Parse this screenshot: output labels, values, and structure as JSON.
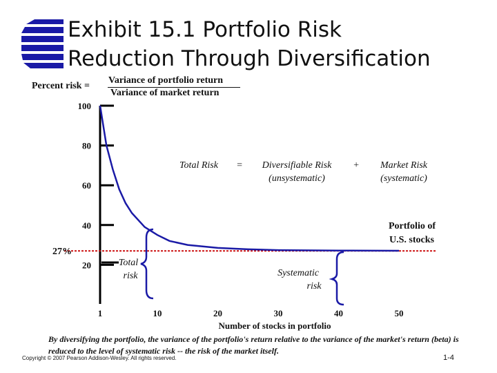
{
  "slide": {
    "title_line1": "Exhibit 15.1  Portfolio Risk",
    "title_line2": "Reduction Through Diversification",
    "formula": {
      "label": "Percent risk  =",
      "numerator": "Variance of portfolio return",
      "denominator": "Variance of market return"
    },
    "caption": "By diversifying the portfolio, the variance of the portfolio's return relative to the variance of the market's return (beta) is reduced to the level of systematic risk -- the risk of the market itself.",
    "copyright": "Copyright © 2007 Pearson Addison-Wesley. All rights reserved.",
    "slide_number": "1-4",
    "logo_color": "#1a1aa6"
  },
  "chart_data": {
    "type": "line",
    "xlabel": "Number of stocks in portfolio",
    "ylabel": "",
    "x_tick_labels": [
      "1",
      "10",
      "20",
      "30",
      "40",
      "50"
    ],
    "y_ticks": [
      20,
      40,
      60,
      80,
      100
    ],
    "ylim": [
      0,
      100
    ],
    "series": [
      {
        "x": [
          1,
          2,
          3,
          4,
          5,
          6,
          8,
          10,
          12,
          15,
          20,
          25,
          30,
          40,
          50
        ],
        "y": [
          100,
          80,
          68,
          58,
          51,
          46,
          39,
          35,
          32,
          30,
          28.5,
          27.8,
          27.4,
          27.2,
          27.1
        ]
      }
    ],
    "market_risk_level": 27,
    "market_risk_label": "27%",
    "annotations": {
      "equation": [
        "Total Risk",
        "=",
        "Diversifiable Risk",
        "(unsystematic)",
        "+",
        "Market Risk",
        "(systematic)"
      ],
      "portfolio_label": [
        "Portfolio of",
        "U.S. stocks"
      ],
      "total_risk_label": [
        "Total",
        "risk"
      ],
      "systematic_risk_label": [
        "Systematic",
        "risk"
      ]
    },
    "colors": {
      "curve": "#1a1aa6",
      "brace": "#1a1aa6",
      "reference_line": "#cc1111",
      "axis": "#000000"
    },
    "grid": false,
    "legend": "none"
  }
}
